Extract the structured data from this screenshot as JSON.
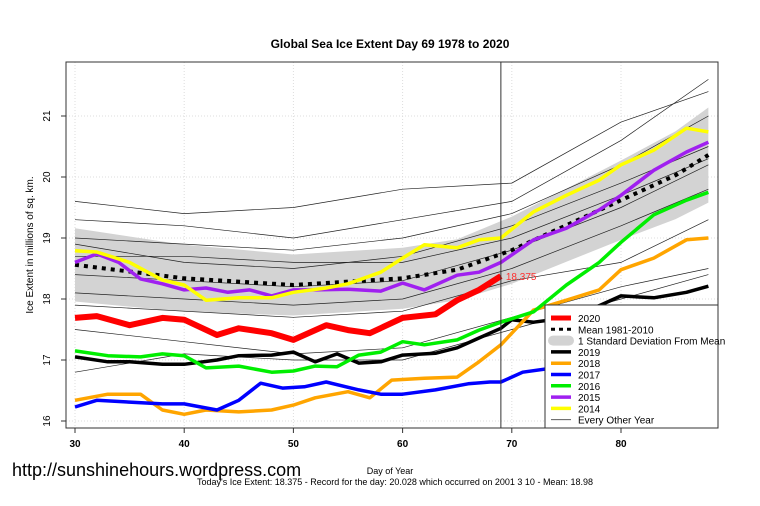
{
  "watermark": "http://sunshinehours.wordpress.com",
  "chart_data": {
    "type": "line",
    "title": "Global Sea Ice Extent Day 69 1978 to 2020",
    "xlabel": "Day of Year",
    "ylabel": "Ice Extent in millions of sq. km.",
    "subtitle": "Today's Ice Extent: 18.375  - Record for the day: 20.028 which occurred on 2001 3 10  - Mean: 18.98",
    "xlim": [
      29,
      89
    ],
    "ylim": [
      15.9,
      21.8
    ],
    "x_ticks": [
      30,
      40,
      50,
      60,
      70,
      80
    ],
    "y_ticks": [
      16,
      17,
      18,
      19,
      20,
      21
    ],
    "grid": true,
    "legend_position": "bottom-right",
    "current_day": 69,
    "annotation": {
      "day": 69,
      "value": 18.375,
      "label": "18.375",
      "color": "#ff3030"
    },
    "mean": {
      "name": "Mean 1981-2010",
      "x": [
        30,
        40,
        50,
        60,
        65,
        70,
        75,
        80,
        85,
        88
      ],
      "y": [
        18.56,
        18.34,
        18.23,
        18.34,
        18.48,
        18.8,
        19.21,
        19.62,
        20.03,
        20.36
      ]
    },
    "std_band": {
      "name": "1 Standard Deviation From Mean",
      "x": [
        30,
        40,
        50,
        60,
        65,
        70,
        75,
        80,
        85,
        88
      ],
      "sd": [
        0.6,
        0.55,
        0.5,
        0.5,
        0.5,
        0.55,
        0.6,
        0.65,
        0.72,
        0.78
      ],
      "color": "#d3d3d3"
    },
    "series": [
      {
        "name": "2019",
        "color": "#000000",
        "width": 3.5,
        "x": [
          30,
          33,
          35,
          38,
          40,
          43,
          45,
          48,
          50,
          52,
          54,
          56,
          58,
          60,
          63,
          65,
          67,
          69,
          70,
          72,
          75,
          78,
          80,
          83,
          86,
          88
        ],
        "y": [
          17.05,
          16.97,
          16.97,
          16.93,
          16.93,
          17.0,
          17.07,
          17.08,
          17.13,
          16.97,
          17.1,
          16.95,
          16.97,
          17.08,
          17.11,
          17.2,
          17.36,
          17.52,
          17.66,
          17.62,
          17.69,
          17.89,
          18.05,
          18.02,
          18.11,
          18.21
        ]
      },
      {
        "name": "2018",
        "color": "#ffa500",
        "width": 3.5,
        "x": [
          30,
          33,
          36,
          38,
          40,
          42,
          45,
          48,
          50,
          52,
          55,
          57,
          59,
          62,
          65,
          67,
          69,
          72,
          75,
          78,
          80,
          83,
          86,
          88
        ],
        "y": [
          16.34,
          16.44,
          16.44,
          16.18,
          16.11,
          16.18,
          16.15,
          16.18,
          16.26,
          16.38,
          16.48,
          16.38,
          16.67,
          16.7,
          16.72,
          16.97,
          17.25,
          17.82,
          17.98,
          18.15,
          18.48,
          18.67,
          18.97,
          19.0
        ]
      },
      {
        "name": "2017",
        "color": "#0000ff",
        "width": 3.5,
        "x": [
          30,
          32,
          35,
          38,
          40,
          43,
          45,
          47,
          49,
          51,
          53,
          56,
          58,
          60,
          63,
          66,
          68,
          69,
          71,
          75,
          78,
          80,
          83,
          86,
          88
        ],
        "y": [
          16.23,
          16.34,
          16.31,
          16.28,
          16.28,
          16.18,
          16.34,
          16.62,
          16.54,
          16.56,
          16.64,
          16.51,
          16.44,
          16.44,
          16.51,
          16.61,
          16.64,
          16.64,
          16.8,
          16.9,
          17.03,
          17.2,
          17.33,
          17.52,
          17.69
        ]
      },
      {
        "name": "2016",
        "color": "#00ee00",
        "width": 3.5,
        "x": [
          30,
          33,
          36,
          38,
          40,
          42,
          45,
          48,
          50,
          52,
          54,
          56,
          58,
          60,
          62,
          65,
          67,
          69,
          72,
          75,
          78,
          80,
          83,
          86,
          88
        ],
        "y": [
          17.15,
          17.07,
          17.05,
          17.1,
          17.07,
          16.87,
          16.9,
          16.8,
          16.82,
          16.9,
          16.89,
          17.08,
          17.13,
          17.3,
          17.25,
          17.33,
          17.49,
          17.62,
          17.79,
          18.23,
          18.6,
          18.93,
          19.38,
          19.62,
          19.75
        ]
      },
      {
        "name": "2015",
        "color": "#a020f0",
        "width": 3.5,
        "x": [
          30,
          32,
          34,
          36,
          38,
          40,
          42,
          44,
          46,
          48,
          50,
          52,
          55,
          58,
          60,
          62,
          65,
          67,
          69,
          72,
          75,
          78,
          80,
          83,
          86,
          88
        ],
        "y": [
          18.6,
          18.74,
          18.6,
          18.33,
          18.25,
          18.15,
          18.18,
          18.11,
          18.15,
          18.05,
          18.15,
          18.15,
          18.16,
          18.13,
          18.26,
          18.15,
          18.39,
          18.44,
          18.6,
          18.97,
          19.16,
          19.46,
          19.7,
          20.11,
          20.41,
          20.57
        ]
      },
      {
        "name": "2014",
        "color": "#ffff00",
        "width": 3.5,
        "x": [
          30,
          32,
          35,
          38,
          40,
          42,
          45,
          48,
          50,
          53,
          55,
          58,
          60,
          62,
          65,
          67,
          69,
          72,
          75,
          78,
          80,
          83,
          86,
          88
        ],
        "y": [
          18.79,
          18.77,
          18.6,
          18.31,
          18.23,
          17.98,
          18.02,
          18.02,
          18.11,
          18.18,
          18.25,
          18.44,
          18.67,
          18.89,
          18.84,
          18.97,
          19.0,
          19.43,
          19.7,
          19.95,
          20.2,
          20.44,
          20.8,
          20.74
        ]
      },
      {
        "name": "2020",
        "color": "#ff0000",
        "width": 6,
        "x": [
          30,
          32,
          35,
          38,
          40,
          43,
          45,
          48,
          50,
          53,
          55,
          57,
          60,
          63,
          65,
          67,
          69
        ],
        "y": [
          17.69,
          17.72,
          17.57,
          17.69,
          17.66,
          17.41,
          17.52,
          17.44,
          17.33,
          17.57,
          17.49,
          17.44,
          17.69,
          17.75,
          17.98,
          18.15,
          18.375
        ]
      }
    ],
    "other_years": {
      "name": "Every Other Year",
      "x": [
        30,
        40,
        50,
        60,
        70,
        80,
        88
      ],
      "lines": [
        [
          19.3,
          19.2,
          19.0,
          19.3,
          19.6,
          20.6,
          21.6
        ],
        [
          19.0,
          18.9,
          18.8,
          19.0,
          19.4,
          20.2,
          21.0
        ],
        [
          18.9,
          18.6,
          18.5,
          18.7,
          19.2,
          19.9,
          20.5
        ],
        [
          18.4,
          18.3,
          18.2,
          18.3,
          18.8,
          19.5,
          20.2
        ],
        [
          18.1,
          18.0,
          17.9,
          18.0,
          18.5,
          19.2,
          19.8
        ],
        [
          17.9,
          17.8,
          17.7,
          17.8,
          18.3,
          18.6,
          19.3
        ],
        [
          17.5,
          17.3,
          17.1,
          17.2,
          17.7,
          18.2,
          18.5
        ],
        [
          16.8,
          17.1,
          17.0,
          17.0,
          17.5,
          18.0,
          18.4
        ],
        [
          19.6,
          19.4,
          19.5,
          19.8,
          19.9,
          20.9,
          21.4
        ],
        [
          18.7,
          18.7,
          18.6,
          18.6,
          19.0,
          19.7,
          20.3
        ]
      ]
    },
    "legend": [
      "2020",
      "Mean 1981-2010",
      "1 Standard Deviation From Mean",
      "2019",
      "2018",
      "2017",
      "2016",
      "2015",
      "2014",
      "Every Other Year"
    ]
  }
}
